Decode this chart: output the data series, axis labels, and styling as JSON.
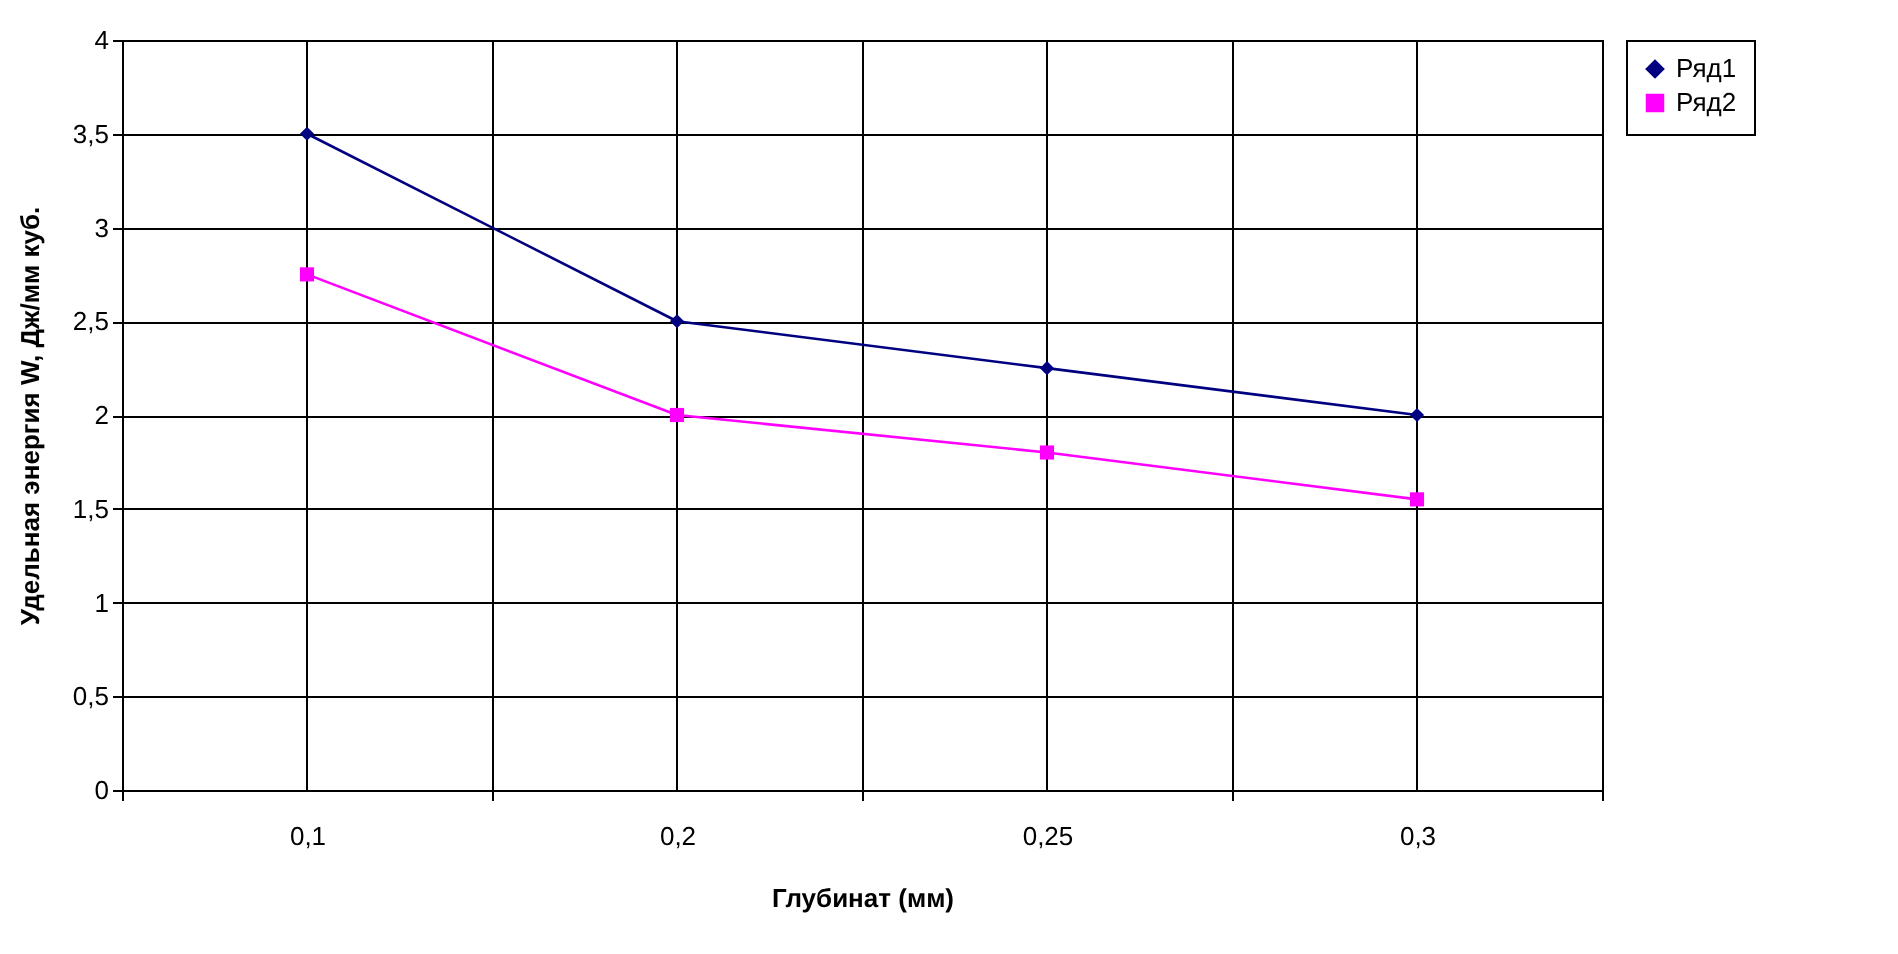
{
  "chart_data": {
    "type": "line",
    "xlabel": "Глубинат (мм)",
    "ylabel": "Удельная энергия W, Дж/мм куб.",
    "categories": [
      "0,1",
      "0,2",
      "0,25",
      "0,3"
    ],
    "series": [
      {
        "name": "Ряд1",
        "color": "#000080",
        "marker": "diamond",
        "values": [
          3.5,
          2.5,
          2.25,
          2.0
        ]
      },
      {
        "name": "Ряд2",
        "color": "#ff00ff",
        "marker": "square",
        "values": [
          2.75,
          2.0,
          1.8,
          1.55
        ]
      }
    ],
    "ylim": [
      0,
      4
    ],
    "yticks": [
      0,
      {
        "value": 0.5,
        "label": "0,5"
      },
      1,
      {
        "value": 1.5,
        "label": "1,5"
      },
      2,
      {
        "value": 2.5,
        "label": "2,5"
      },
      3,
      {
        "value": 3.5,
        "label": "3,5"
      },
      4
    ],
    "grid": true,
    "legend": "right"
  }
}
